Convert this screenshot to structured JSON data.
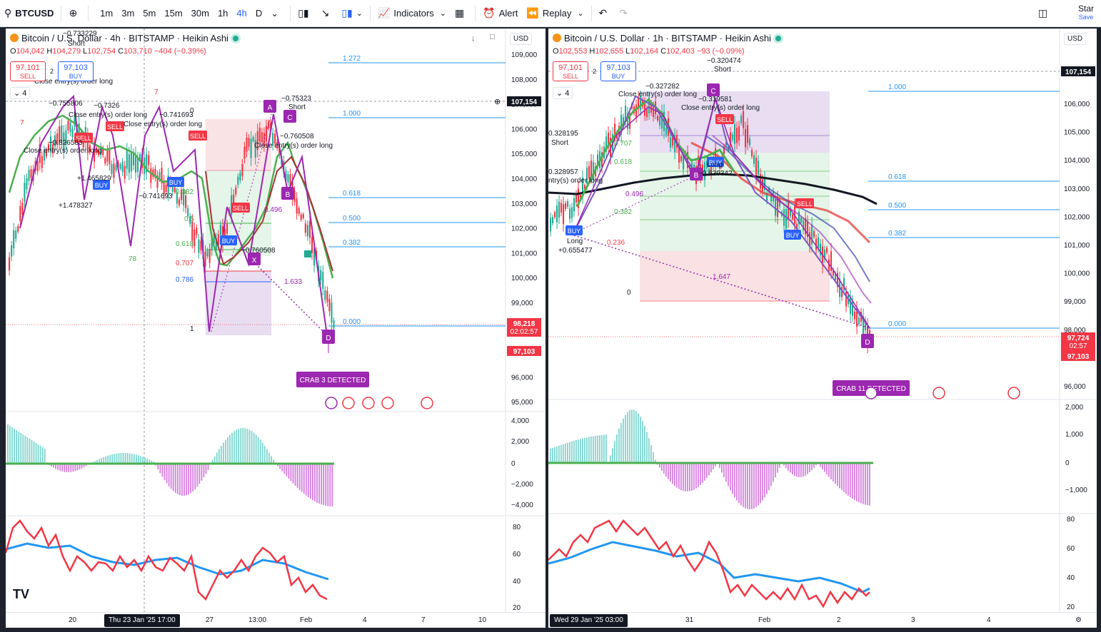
{
  "toolbar": {
    "symbol": "BTCUSD",
    "intervals": [
      "1m",
      "3m",
      "5m",
      "15m",
      "30m",
      "1h",
      "4h",
      "D"
    ],
    "active_interval": "4h",
    "indicators_label": "Indicators",
    "alert_label": "Alert",
    "replay_label": "Replay",
    "star_label": "Star",
    "save_label": "Save"
  },
  "left": {
    "title": "Bitcoin / U.S. Dollar · 4h · BITSTAMP · Heikin Ashi",
    "ohlc": {
      "o": "104,042",
      "h": "104,279",
      "l": "102,754",
      "c": "103,710",
      "chg": "−404 (−0.39%)"
    },
    "sell_price": "97,101",
    "buy_price": "97,103",
    "spread": "2",
    "sell_label": "SELL",
    "buy_label": "BUY",
    "layers": "4",
    "currency": "USD",
    "price_ticks": [
      "109,000",
      "108,000",
      "107,000",
      "106,000",
      "105,000",
      "104,000",
      "103,000",
      "102,000",
      "101,000",
      "100,000",
      "99,000",
      "98,000",
      "97,000",
      "96,000",
      "95,000"
    ],
    "tag_top": "107,154",
    "tag_price": "98,218",
    "tag_timer": "02:02:57",
    "tag_bid": "97,103",
    "fib_labels": [
      "1.272",
      "1.000",
      "0.618",
      "0.500",
      "0.382",
      "0.000"
    ],
    "pattern_label": "CRAB 3 DETECTED",
    "osc_ticks": [
      "4,000",
      "2,000",
      "0",
      "−2,000",
      "−4,000"
    ],
    "rsi_ticks": [
      "80",
      "60",
      "40",
      "20"
    ],
    "x_labels": [
      "20",
      "27",
      "13:00",
      "Feb",
      "4",
      "7",
      "10"
    ],
    "x_highlight": "Thu 23 Jan '25   17:00"
  },
  "right": {
    "title": "Bitcoin / U.S. Dollar · 1h · BITSTAMP · Heikin Ashi",
    "ohlc": {
      "o": "102,553",
      "h": "102,655",
      "l": "102,164",
      "c": "102,403",
      "chg": "−93 (−0.09%)"
    },
    "sell_price": "97,101",
    "buy_price": "97,103",
    "spread": "2",
    "sell_label": "SELL",
    "buy_label": "BUY",
    "layers": "4",
    "currency": "USD",
    "price_ticks": [
      "106,000",
      "105,000",
      "104,000",
      "103,000",
      "102,000",
      "101,000",
      "100,000",
      "99,000",
      "98,000",
      "96,000"
    ],
    "tag_top": "107,154",
    "tag_price": "97,724",
    "tag_timer": "02:57",
    "tag_bid": "97,103",
    "fib_labels": [
      "1.000",
      "0.618",
      "0.500",
      "0.382",
      "0.000"
    ],
    "pattern_label": "CRAB 11 DETECTED",
    "osc_ticks": [
      "2,000",
      "1,000",
      "0",
      "−1,000"
    ],
    "rsi_ticks": [
      "80",
      "60",
      "40",
      "20"
    ],
    "x_labels": [
      "31",
      "Feb",
      "2",
      "3",
      "4"
    ],
    "x_highlight": "Wed 29 Jan '25   03:00"
  },
  "colors": {
    "up": "#22ab94",
    "down": "#f23645",
    "accent": "#2962ff",
    "pattern": "#9c27b0"
  }
}
